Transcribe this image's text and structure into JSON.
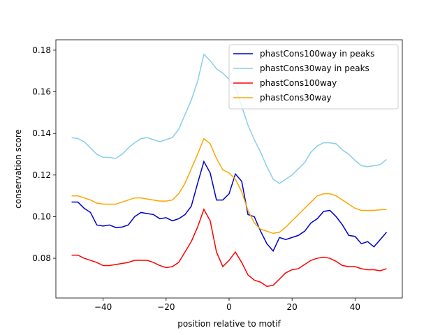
{
  "chart_data": {
    "type": "line",
    "x_label": "position relative to motif",
    "y_label": "conservation score",
    "x": [
      -50,
      -48,
      -46,
      -44,
      -42,
      -40,
      -38,
      -36,
      -34,
      -32,
      -30,
      -28,
      -26,
      -24,
      -22,
      -20,
      -18,
      -16,
      -14,
      -12,
      -10,
      -8,
      -6,
      -4,
      -2,
      0,
      2,
      4,
      6,
      8,
      10,
      12,
      14,
      16,
      18,
      20,
      22,
      24,
      26,
      28,
      30,
      32,
      34,
      36,
      38,
      40,
      42,
      44,
      46,
      48,
      50
    ],
    "series": [
      {
        "name": "phastCons100way in peaks",
        "color": "#0000cd",
        "values": [
          0.107,
          0.107,
          0.104,
          0.102,
          0.096,
          0.0955,
          0.096,
          0.0948,
          0.095,
          0.096,
          0.1,
          0.102,
          0.1015,
          0.101,
          0.099,
          0.0995,
          0.098,
          0.099,
          0.101,
          0.105,
          0.116,
          0.1265,
          0.121,
          0.108,
          0.108,
          0.111,
          0.1205,
          0.117,
          0.101,
          0.1,
          0.093,
          0.087,
          0.0835,
          0.09,
          0.089,
          0.09,
          0.091,
          0.093,
          0.097,
          0.099,
          0.1025,
          0.103,
          0.1,
          0.096,
          0.091,
          0.0905,
          0.087,
          0.088,
          0.0855,
          0.089,
          0.0925
        ]
      },
      {
        "name": "phastCons30way in peaks",
        "color": "#87ceeb",
        "values": [
          0.138,
          0.1375,
          0.136,
          0.133,
          0.13,
          0.1285,
          0.1285,
          0.128,
          0.13,
          0.133,
          0.1355,
          0.1375,
          0.138,
          0.137,
          0.136,
          0.137,
          0.138,
          0.142,
          0.149,
          0.156,
          0.165,
          0.178,
          0.175,
          0.171,
          0.169,
          0.166,
          0.162,
          0.153,
          0.144,
          0.137,
          0.131,
          0.124,
          0.118,
          0.116,
          0.118,
          0.12,
          0.123,
          0.126,
          0.131,
          0.134,
          0.1355,
          0.1355,
          0.135,
          0.132,
          0.13,
          0.127,
          0.1245,
          0.124,
          0.1245,
          0.125,
          0.1275
        ]
      },
      {
        "name": "phastCons100way",
        "color": "#ff0000",
        "values": [
          0.0815,
          0.0815,
          0.08,
          0.079,
          0.078,
          0.0765,
          0.0765,
          0.077,
          0.0775,
          0.078,
          0.079,
          0.079,
          0.079,
          0.078,
          0.0765,
          0.0755,
          0.076,
          0.078,
          0.083,
          0.088,
          0.095,
          0.1035,
          0.098,
          0.083,
          0.076,
          0.079,
          0.083,
          0.078,
          0.072,
          0.0695,
          0.0685,
          0.0665,
          0.067,
          0.07,
          0.073,
          0.0745,
          0.075,
          0.077,
          0.079,
          0.08,
          0.0805,
          0.08,
          0.0785,
          0.0765,
          0.076,
          0.076,
          0.075,
          0.0745,
          0.0745,
          0.074,
          0.075
        ]
      },
      {
        "name": "phastCons30way",
        "color": "#ffa500",
        "values": [
          0.11,
          0.11,
          0.109,
          0.108,
          0.1065,
          0.106,
          0.106,
          0.106,
          0.107,
          0.108,
          0.109,
          0.109,
          0.1085,
          0.108,
          0.1075,
          0.1075,
          0.108,
          0.111,
          0.116,
          0.123,
          0.13,
          0.1375,
          0.135,
          0.128,
          0.1225,
          0.121,
          0.118,
          0.112,
          0.103,
          0.097,
          0.094,
          0.093,
          0.092,
          0.0925,
          0.095,
          0.098,
          0.101,
          0.104,
          0.107,
          0.11,
          0.111,
          0.111,
          0.11,
          0.108,
          0.106,
          0.104,
          0.103,
          0.103,
          0.103,
          0.1033,
          0.1035
        ]
      }
    ],
    "xlim": [
      -55,
      55
    ],
    "ylim": [
      0.0609,
      0.185
    ],
    "xticks": [
      {
        "value": -40,
        "label": "−40"
      },
      {
        "value": -20,
        "label": "−20"
      },
      0,
      20,
      40
    ],
    "yticks": [
      0.08,
      {
        "value": 0.1,
        "label": "0.10"
      },
      0.12,
      0.14,
      0.16,
      0.18
    ],
    "legend": "upper right"
  }
}
